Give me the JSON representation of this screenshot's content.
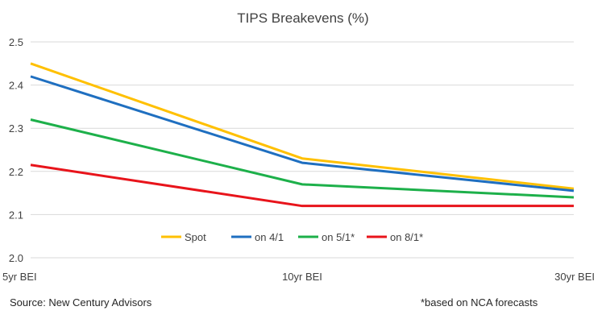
{
  "chart_data": {
    "type": "line",
    "title": "TIPS Breakevens (%)",
    "categories": [
      "5yr BEI",
      "10yr BEI",
      "30yr BEI"
    ],
    "series": [
      {
        "name": "Spot",
        "values": [
          2.45,
          2.23,
          2.16
        ],
        "color": "#FFC000"
      },
      {
        "name": "on 4/1",
        "values": [
          2.42,
          2.22,
          2.155
        ],
        "color": "#1F6FC0"
      },
      {
        "name": "on 5/1*",
        "values": [
          2.32,
          2.17,
          2.14
        ],
        "color": "#1DB04A"
      },
      {
        "name": "on 8/1*",
        "values": [
          2.215,
          2.12,
          2.12
        ],
        "color": "#E8141B"
      }
    ],
    "yticks": [
      "2.0",
      "2.1",
      "2.2",
      "2.3",
      "2.4",
      "2.5"
    ],
    "ylim": [
      2.0,
      2.5
    ],
    "grid": true,
    "legend_position": "bottom-center"
  },
  "footer": {
    "source": "Source: New Century Advisors",
    "note": "*based on NCA forecasts"
  }
}
